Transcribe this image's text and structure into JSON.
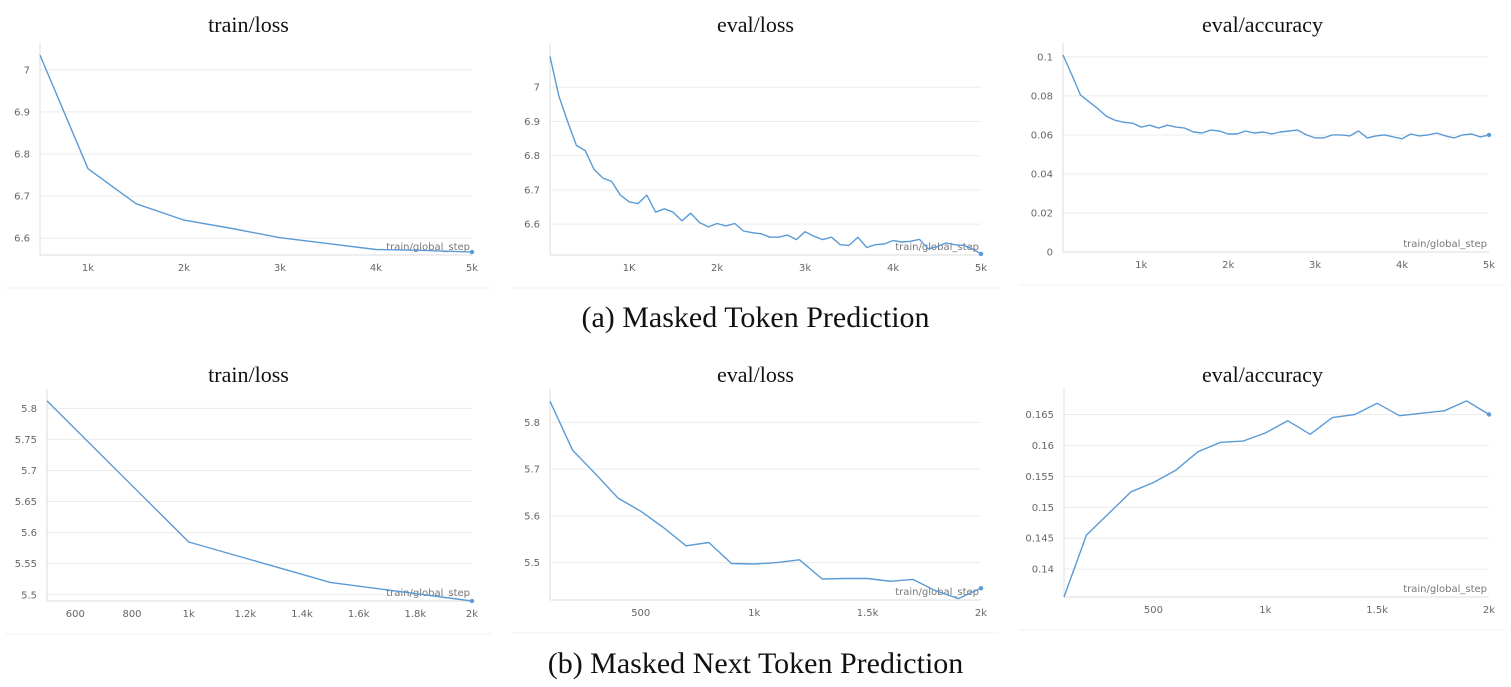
{
  "captions": {
    "a": "(a) Masked Token Prediction",
    "b": "(b) Masked Next Token Prediction"
  },
  "colors": {
    "line": "#5b9bd5",
    "grid": "#ececec",
    "frame": "#dddddd"
  },
  "chart_data": [
    {
      "type": "line",
      "title": "train/loss",
      "xlabel": "train/global_step",
      "ylabel": "",
      "xlim": [
        500,
        5000
      ],
      "ylim": [
        6.56,
        7.04
      ],
      "xticks": [
        1000,
        2000,
        3000,
        4000,
        5000
      ],
      "xtick_labels": [
        "1k",
        "2k",
        "3k",
        "4k",
        "5k"
      ],
      "yticks": [
        6.6,
        6.7,
        6.8,
        6.9,
        7.0
      ],
      "ytick_labels": [
        "6.6",
        "6.7",
        "6.8",
        "6.9",
        "7"
      ],
      "x": [
        500,
        1000,
        1500,
        2000,
        2500,
        3000,
        3500,
        4000,
        4500,
        5000
      ],
      "y": [
        7.035,
        6.765,
        6.682,
        6.643,
        6.623,
        6.601,
        6.587,
        6.573,
        6.571,
        6.567
      ]
    },
    {
      "type": "line",
      "title": "eval/loss",
      "xlabel": "train/global_step",
      "ylabel": "",
      "xlim": [
        100,
        5000
      ],
      "ylim": [
        6.51,
        7.1
      ],
      "xticks": [
        1000,
        2000,
        3000,
        4000,
        5000
      ],
      "xtick_labels": [
        "1K",
        "2k",
        "3k",
        "4k",
        "5k"
      ],
      "yticks": [
        6.6,
        6.7,
        6.8,
        6.9,
        7.0
      ],
      "ytick_labels": [
        "6.6",
        "6.7",
        "6.8",
        "6.9",
        "7"
      ],
      "x": [
        100,
        200,
        300,
        400,
        500,
        600,
        700,
        800,
        900,
        1000,
        1100,
        1200,
        1300,
        1400,
        1500,
        1600,
        1700,
        1800,
        1900,
        2000,
        2100,
        2200,
        2300,
        2400,
        2500,
        2600,
        2700,
        2800,
        2900,
        3000,
        3100,
        3200,
        3300,
        3400,
        3500,
        3600,
        3700,
        3800,
        3900,
        4000,
        4100,
        4200,
        4300,
        4400,
        4500,
        4600,
        4700,
        4800,
        4900,
        5000
      ],
      "y": [
        7.09,
        6.975,
        6.9,
        6.83,
        6.815,
        6.76,
        6.735,
        6.725,
        6.685,
        6.665,
        6.66,
        6.685,
        6.635,
        6.645,
        6.635,
        6.61,
        6.632,
        6.605,
        6.592,
        6.602,
        6.595,
        6.602,
        6.58,
        6.575,
        6.572,
        6.562,
        6.562,
        6.568,
        6.555,
        6.578,
        6.565,
        6.555,
        6.562,
        6.54,
        6.538,
        6.562,
        6.532,
        6.54,
        6.542,
        6.552,
        6.548,
        6.55,
        6.556,
        6.528,
        6.534,
        6.545,
        6.54,
        6.538,
        6.528,
        6.513
      ]
    },
    {
      "type": "line",
      "title": "eval/accuracy",
      "xlabel": "train/global_step",
      "ylabel": "",
      "xlim": [
        100,
        5000
      ],
      "ylim": [
        0,
        0.102
      ],
      "xticks": [
        1000,
        2000,
        3000,
        4000,
        5000
      ],
      "xtick_labels": [
        "1k",
        "2k",
        "3k",
        "4k",
        "5k"
      ],
      "yticks": [
        0,
        0.02,
        0.04,
        0.06,
        0.08,
        0.1
      ],
      "ytick_labels": [
        "0",
        "0.02",
        "0.04",
        "0.06",
        "0.08",
        "0.1"
      ],
      "x": [
        100,
        200,
        300,
        400,
        500,
        600,
        700,
        800,
        900,
        1000,
        1100,
        1200,
        1300,
        1400,
        1500,
        1600,
        1700,
        1800,
        1900,
        2000,
        2100,
        2200,
        2300,
        2400,
        2500,
        2600,
        2700,
        2800,
        2900,
        3000,
        3100,
        3200,
        3300,
        3400,
        3500,
        3600,
        3700,
        3800,
        3900,
        4000,
        4100,
        4200,
        4300,
        4400,
        4500,
        4600,
        4700,
        4800,
        4900,
        5000
      ],
      "y": [
        0.101,
        0.091,
        0.0805,
        0.077,
        0.0735,
        0.0695,
        0.0675,
        0.0665,
        0.066,
        0.064,
        0.065,
        0.0635,
        0.065,
        0.064,
        0.0635,
        0.0615,
        0.061,
        0.0625,
        0.062,
        0.0605,
        0.0605,
        0.062,
        0.061,
        0.0615,
        0.0605,
        0.0615,
        0.062,
        0.0625,
        0.06,
        0.0585,
        0.0585,
        0.06,
        0.06,
        0.0595,
        0.062,
        0.0585,
        0.0595,
        0.06,
        0.059,
        0.058,
        0.0605,
        0.0595,
        0.06,
        0.061,
        0.0595,
        0.0585,
        0.06,
        0.0605,
        0.059,
        0.06
      ]
    },
    {
      "type": "line",
      "title": "train/loss",
      "xlabel": "train/global_step",
      "ylabel": "",
      "xlim": [
        500,
        2000
      ],
      "ylim": [
        5.49,
        5.815
      ],
      "xticks": [
        600,
        800,
        1000,
        1200,
        1400,
        1600,
        1800,
        2000
      ],
      "xtick_labels": [
        "600",
        "800",
        "1k",
        "1.2k",
        "1.4k",
        "1.6k",
        "1.8k",
        "2k"
      ],
      "yticks": [
        5.5,
        5.55,
        5.6,
        5.65,
        5.7,
        5.75,
        5.8
      ],
      "ytick_labels": [
        "5.5",
        "5.55",
        "5.6",
        "5.65",
        "5.7",
        "5.75",
        "5.8"
      ],
      "x": [
        500,
        1000,
        1500,
        2000
      ],
      "y": [
        5.812,
        5.585,
        5.52,
        5.49
      ]
    },
    {
      "type": "line",
      "title": "eval/loss",
      "xlabel": "train/global_step",
      "ylabel": "",
      "xlim": [
        100,
        2000
      ],
      "ylim": [
        5.42,
        5.85
      ],
      "xticks": [
        500,
        1000,
        1500,
        2000
      ],
      "xtick_labels": [
        "500",
        "1k",
        "1.5k",
        "2k"
      ],
      "yticks": [
        5.5,
        5.6,
        5.7,
        5.8
      ],
      "ytick_labels": [
        "5.5",
        "5.6",
        "5.7",
        "5.8"
      ],
      "x": [
        100,
        200,
        300,
        400,
        500,
        600,
        700,
        800,
        900,
        1000,
        1100,
        1200,
        1300,
        1400,
        1500,
        1600,
        1700,
        1800,
        1900,
        2000
      ],
      "y": [
        5.845,
        5.74,
        5.69,
        5.638,
        5.61,
        5.575,
        5.536,
        5.543,
        5.498,
        5.497,
        5.5,
        5.506,
        5.465,
        5.466,
        5.466,
        5.46,
        5.464,
        5.44,
        5.423,
        5.445
      ]
    },
    {
      "type": "line",
      "title": "eval/accuracy",
      "xlabel": "train/global_step",
      "ylabel": "",
      "xlim": [
        100,
        2000
      ],
      "ylim": [
        0.1355,
        0.1675
      ],
      "xticks": [
        500,
        1000,
        1500,
        2000
      ],
      "xtick_labels": [
        "500",
        "1k",
        "1.5k",
        "2k"
      ],
      "yticks": [
        0.14,
        0.145,
        0.15,
        0.155,
        0.16,
        0.165
      ],
      "ytick_labels": [
        "0.14",
        "0.145",
        "0.15",
        "0.155",
        "0.16",
        "0.165"
      ],
      "x": [
        100,
        200,
        300,
        400,
        500,
        600,
        700,
        800,
        900,
        1000,
        1100,
        1200,
        1300,
        1400,
        1500,
        1600,
        1700,
        1800,
        1900,
        2000
      ],
      "y": [
        0.1355,
        0.1455,
        0.149,
        0.1525,
        0.154,
        0.156,
        0.159,
        0.1605,
        0.1607,
        0.162,
        0.164,
        0.1618,
        0.1645,
        0.165,
        0.1668,
        0.1648,
        0.1652,
        0.1656,
        0.1672,
        0.165
      ]
    }
  ]
}
